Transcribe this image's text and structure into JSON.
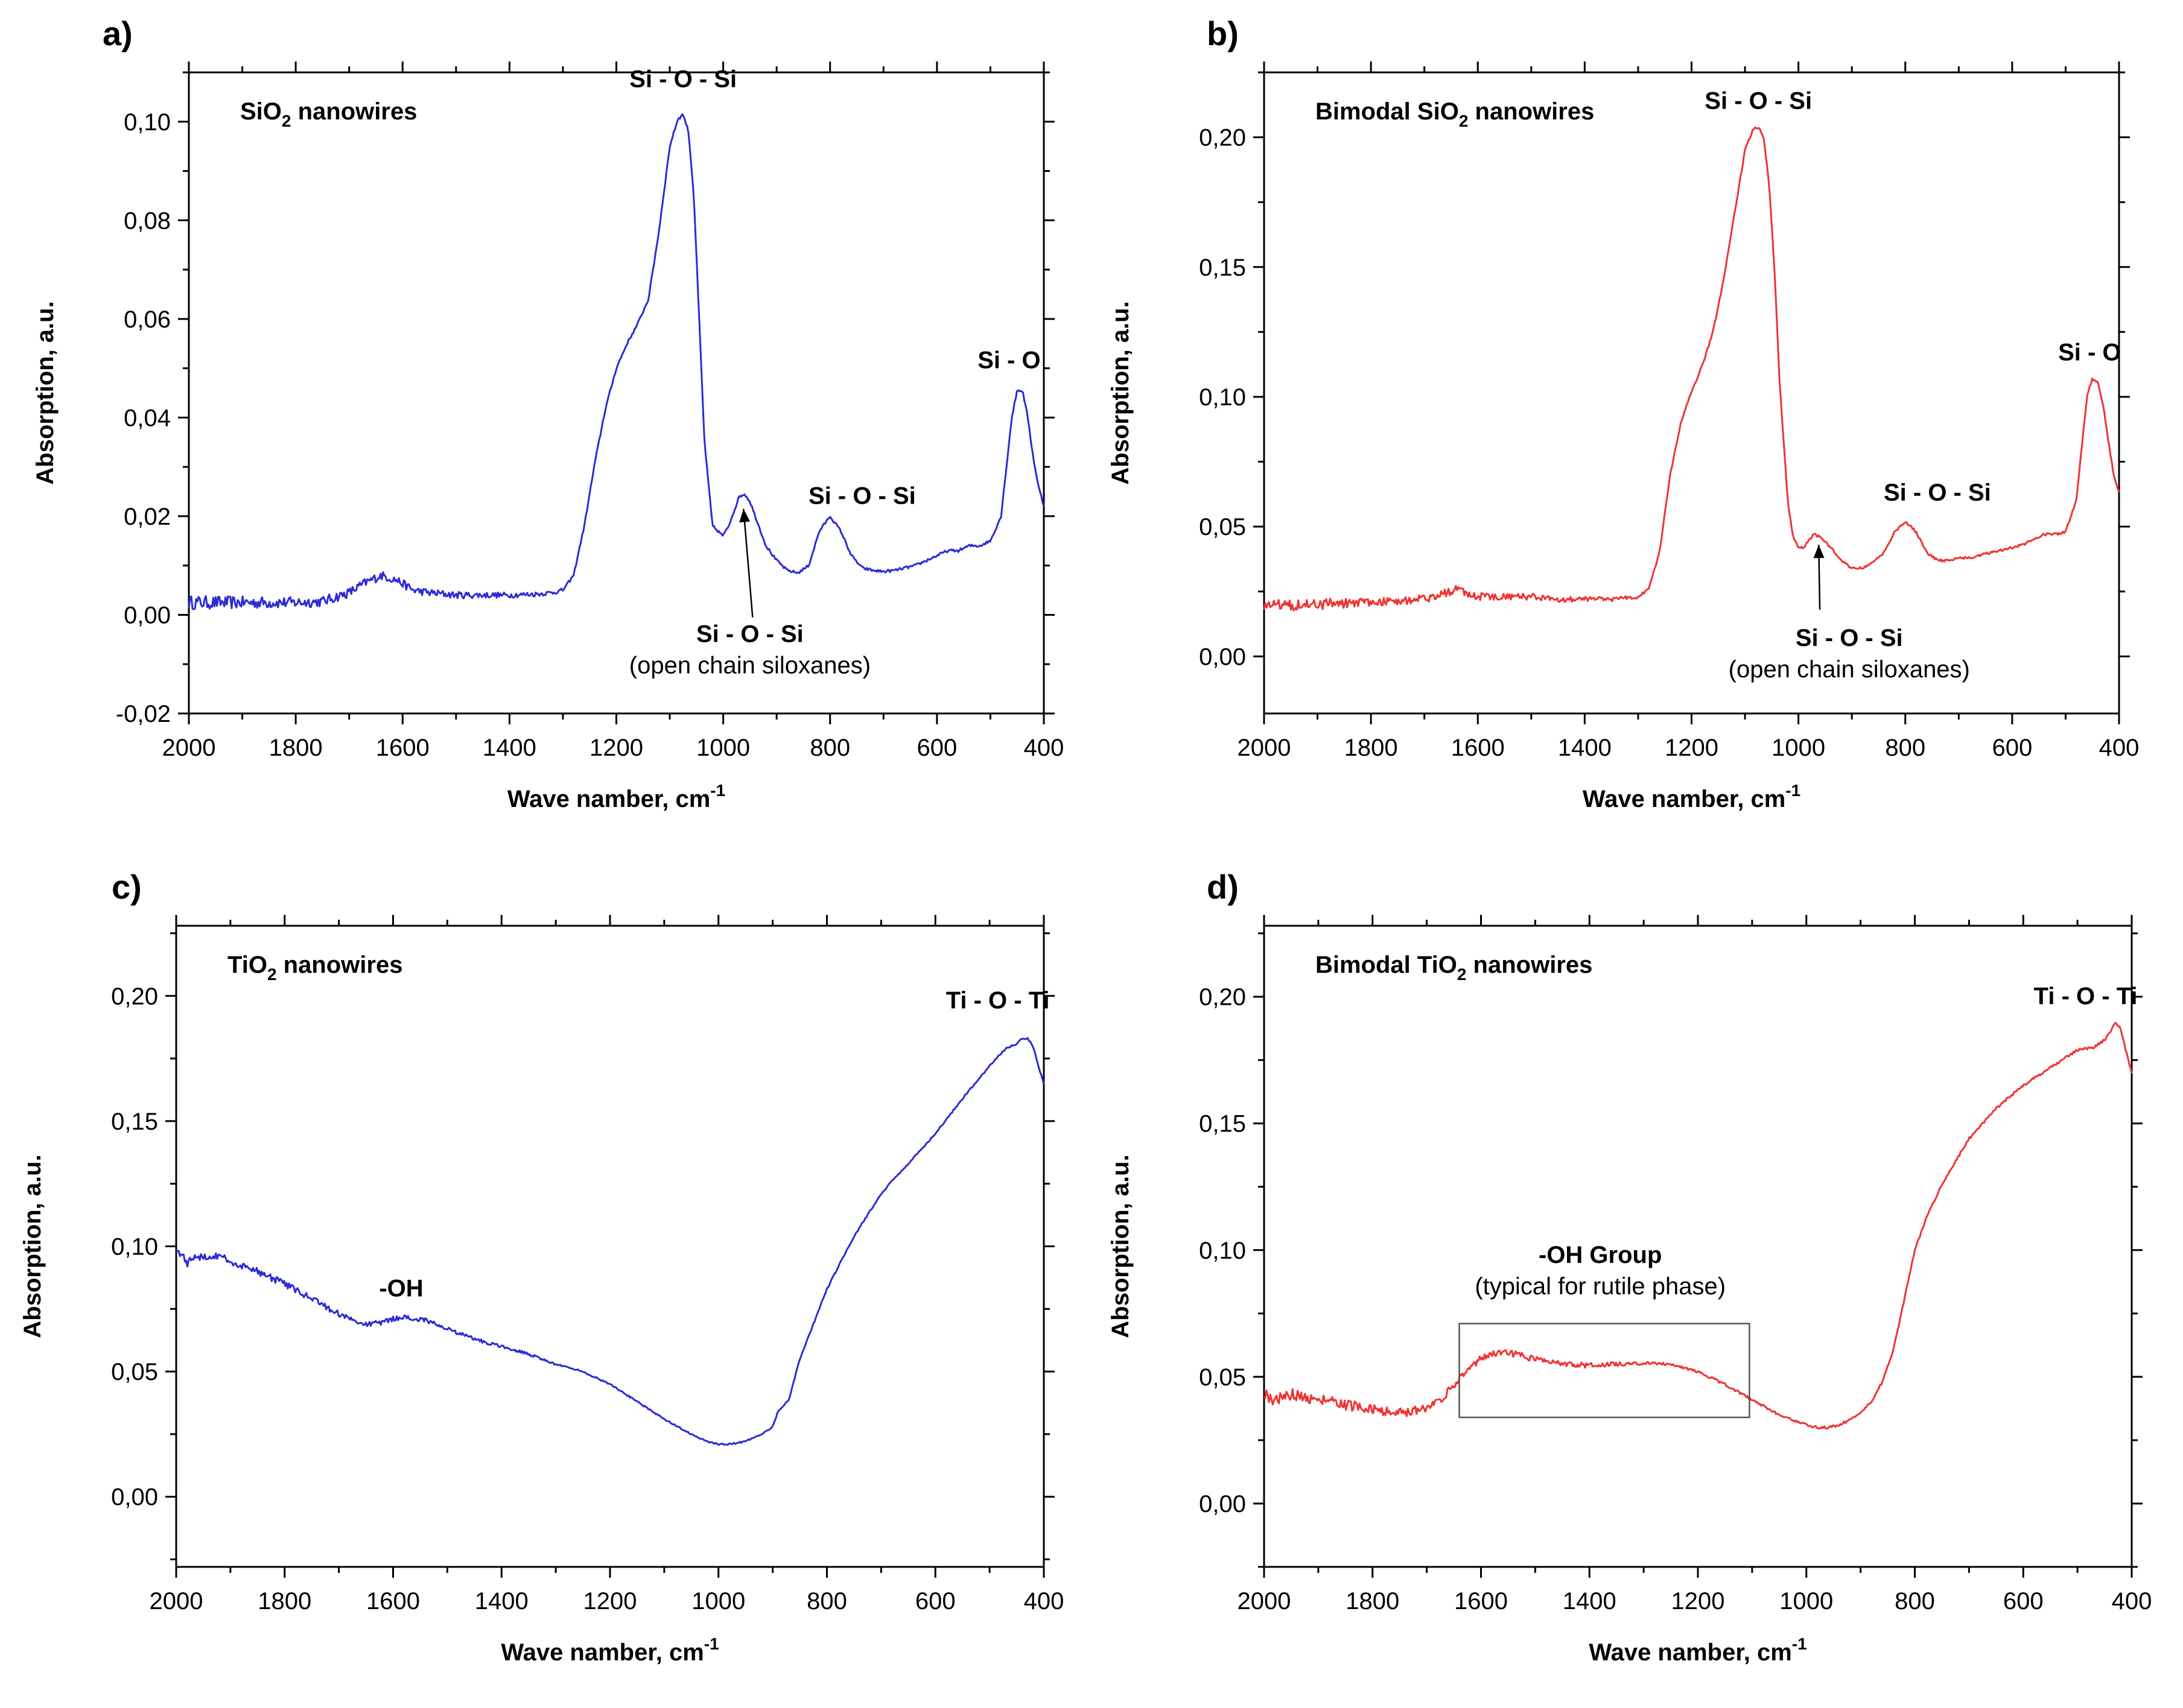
{
  "chart_data": [
    {
      "type": "line",
      "panel_label": "a)",
      "title": "SiO2 nanowires",
      "title_main": "SiO",
      "title_sub": "2",
      "title_rest": " nanowires",
      "xlabel": "Wave namber, cm",
      "xlabel_sup": "-1",
      "ylabel": "Absorption, a.u.",
      "xlim": [
        2000,
        400
      ],
      "ylim": [
        -0.02,
        0.11
      ],
      "xticks": [
        2000,
        1800,
        1600,
        1400,
        1200,
        1000,
        800,
        600,
        400
      ],
      "yticks": [
        -0.02,
        0.0,
        0.02,
        0.04,
        0.06,
        0.08,
        0.1
      ],
      "ytick_labels": [
        "-0,02",
        "0,00",
        "0,02",
        "0,04",
        "0,06",
        "0,08",
        "0,10"
      ],
      "color": "#2b2bd6",
      "noise": 0.0007,
      "series": [
        {
          "name": "SiO2 nanowires",
          "x": [
            2000,
            1950,
            1900,
            1850,
            1800,
            1750,
            1700,
            1670,
            1640,
            1610,
            1580,
            1550,
            1500,
            1450,
            1400,
            1350,
            1320,
            1300,
            1280,
            1260,
            1240,
            1220,
            1200,
            1180,
            1160,
            1140,
            1120,
            1100,
            1085,
            1075,
            1065,
            1055,
            1045,
            1035,
            1020,
            1000,
            990,
            980,
            970,
            960,
            950,
            940,
            920,
            900,
            880,
            860,
            840,
            820,
            800,
            780,
            760,
            740,
            720,
            700,
            680,
            660,
            640,
            620,
            600,
            580,
            560,
            540,
            520,
            500,
            480,
            470,
            460,
            450,
            440,
            430,
            420,
            410,
            400
          ],
          "values": [
            0.0025,
            0.0025,
            0.0025,
            0.0025,
            0.0025,
            0.0027,
            0.0045,
            0.0065,
            0.008,
            0.007,
            0.005,
            0.0045,
            0.004,
            0.004,
            0.004,
            0.0042,
            0.0045,
            0.005,
            0.008,
            0.018,
            0.031,
            0.042,
            0.05,
            0.055,
            0.059,
            0.064,
            0.078,
            0.095,
            0.1005,
            0.1015,
            0.098,
            0.085,
            0.06,
            0.035,
            0.018,
            0.016,
            0.018,
            0.021,
            0.024,
            0.0245,
            0.023,
            0.02,
            0.014,
            0.011,
            0.009,
            0.0085,
            0.01,
            0.017,
            0.02,
            0.017,
            0.012,
            0.0095,
            0.009,
            0.0088,
            0.009,
            0.0095,
            0.01,
            0.011,
            0.012,
            0.013,
            0.013,
            0.014,
            0.014,
            0.015,
            0.02,
            0.03,
            0.04,
            0.0455,
            0.0455,
            0.04,
            0.032,
            0.026,
            0.022
          ]
        }
      ],
      "annotations": [
        {
          "text": "Si - O - Si",
          "sub": "",
          "x": 1075,
          "y": 0.107
        },
        {
          "text": "Si - O - Si",
          "sub": "",
          "x": 740,
          "y": 0.0225
        },
        {
          "text": "Si - O",
          "sub": "",
          "x": 465,
          "y": 0.05
        },
        {
          "text": "Si - O - Si",
          "sub": "(open chain siloxanes)",
          "x": 950,
          "y": -0.0055
        }
      ],
      "arrow": {
        "from": [
          945,
          -0.0005
        ],
        "to": [
          962,
          0.0215
        ]
      },
      "box": null
    },
    {
      "type": "line",
      "panel_label": "b)",
      "title": "Bimodal SiO2 nanowires",
      "title_main": "Bimodal SiO",
      "title_sub": "2",
      "title_rest": " nanowires",
      "xlabel": "Wave namber, cm",
      "xlabel_sup": "-1",
      "ylabel": "Absorption, a.u.",
      "xlim": [
        2000,
        400
      ],
      "ylim": [
        -0.022,
        0.225
      ],
      "xticks": [
        2000,
        1800,
        1600,
        1400,
        1200,
        1000,
        800,
        600,
        400
      ],
      "yticks": [
        0.0,
        0.05,
        0.1,
        0.15,
        0.2
      ],
      "ytick_labels": [
        "0,00",
        "0,05",
        "0,10",
        "0,15",
        "0,20"
      ],
      "color": "#ee3333",
      "noise": 0.0012,
      "series": [
        {
          "name": "Bimodal SiO2 nanowires",
          "x": [
            2000,
            1900,
            1800,
            1700,
            1650,
            1640,
            1600,
            1550,
            1500,
            1450,
            1400,
            1350,
            1300,
            1280,
            1260,
            1240,
            1220,
            1200,
            1180,
            1160,
            1140,
            1120,
            1100,
            1085,
            1075,
            1065,
            1055,
            1045,
            1035,
            1020,
            1010,
            1000,
            990,
            980,
            970,
            960,
            940,
            920,
            900,
            880,
            860,
            840,
            820,
            800,
            780,
            760,
            740,
            720,
            700,
            680,
            660,
            640,
            620,
            600,
            580,
            560,
            540,
            520,
            500,
            480,
            470,
            460,
            450,
            440,
            430,
            420,
            410,
            400
          ],
          "values": [
            0.02,
            0.02,
            0.021,
            0.022,
            0.025,
            0.026,
            0.023,
            0.023,
            0.023,
            0.022,
            0.022,
            0.022,
            0.023,
            0.026,
            0.04,
            0.07,
            0.09,
            0.102,
            0.112,
            0.125,
            0.145,
            0.17,
            0.195,
            0.203,
            0.204,
            0.2,
            0.182,
            0.15,
            0.105,
            0.06,
            0.046,
            0.042,
            0.042,
            0.045,
            0.047,
            0.046,
            0.042,
            0.037,
            0.034,
            0.034,
            0.036,
            0.04,
            0.048,
            0.052,
            0.048,
            0.04,
            0.037,
            0.037,
            0.038,
            0.038,
            0.039,
            0.04,
            0.041,
            0.042,
            0.043,
            0.045,
            0.047,
            0.047,
            0.048,
            0.06,
            0.08,
            0.1,
            0.107,
            0.106,
            0.097,
            0.083,
            0.07,
            0.063
          ]
        }
      ],
      "annotations": [
        {
          "text": "Si - O - Si",
          "sub": "",
          "x": 1075,
          "y": 0.211
        },
        {
          "text": "Si - O - Si",
          "sub": "",
          "x": 740,
          "y": 0.06
        },
        {
          "text": "Si - O",
          "sub": "",
          "x": 455,
          "y": 0.114
        },
        {
          "text": "Si - O - Si",
          "sub": "(open chain siloxanes)",
          "x": 905,
          "y": 0.004
        }
      ],
      "arrow": {
        "from": [
          960,
          0.018
        ],
        "to": [
          962,
          0.043
        ]
      },
      "box": null
    },
    {
      "type": "line",
      "panel_label": "c)",
      "title": "TiO2 nanowires",
      "title_main": "TiO",
      "title_sub": "2",
      "title_rest": " nanowires",
      "xlabel": "Wave namber, cm",
      "xlabel_sup": "-1",
      "ylabel": "Absorption, a.u.",
      "xlim": [
        2000,
        400
      ],
      "ylim": [
        -0.028,
        0.228
      ],
      "xticks": [
        2000,
        1800,
        1600,
        1400,
        1200,
        1000,
        800,
        600,
        400
      ],
      "yticks": [
        0.0,
        0.05,
        0.1,
        0.15,
        0.2
      ],
      "ytick_labels": [
        "0,00",
        "0,05",
        "0,10",
        "0,15",
        "0,20"
      ],
      "color": "#2b2bd6",
      "noise": 0.0008,
      "series": [
        {
          "name": "TiO2 nanowires",
          "x": [
            2000,
            1990,
            1980,
            1970,
            1950,
            1920,
            1900,
            1850,
            1800,
            1750,
            1700,
            1670,
            1650,
            1620,
            1600,
            1580,
            1560,
            1540,
            1500,
            1450,
            1400,
            1350,
            1300,
            1250,
            1200,
            1150,
            1100,
            1050,
            1020,
            1000,
            980,
            950,
            920,
            900,
            890,
            880,
            870,
            850,
            800,
            750,
            700,
            680,
            650,
            600,
            550,
            500,
            470,
            450,
            440,
            430,
            420,
            410,
            400
          ],
          "values": [
            0.099,
            0.097,
            0.093,
            0.095,
            0.096,
            0.096,
            0.094,
            0.09,
            0.085,
            0.079,
            0.073,
            0.07,
            0.069,
            0.0695,
            0.071,
            0.0715,
            0.071,
            0.0705,
            0.067,
            0.063,
            0.06,
            0.057,
            0.053,
            0.05,
            0.045,
            0.038,
            0.031,
            0.025,
            0.022,
            0.021,
            0.021,
            0.022,
            0.025,
            0.028,
            0.034,
            0.036,
            0.039,
            0.055,
            0.083,
            0.104,
            0.121,
            0.126,
            0.133,
            0.145,
            0.159,
            0.172,
            0.179,
            0.181,
            0.183,
            0.183,
            0.18,
            0.172,
            0.165
          ]
        }
      ],
      "annotations": [
        {
          "text": "Ti - O - Ti",
          "sub": "",
          "x": 485,
          "y": 0.195
        },
        {
          "text": "-OH",
          "sub": "",
          "x": 1585,
          "y": 0.08
        }
      ],
      "arrow": null,
      "box": null
    },
    {
      "type": "line",
      "panel_label": "d)",
      "title": "Bimodal TiO2 nanowires",
      "title_main": "Bimodal TiO",
      "title_sub": "2",
      "title_rest": " nanowires",
      "xlabel": "Wave namber, cm",
      "xlabel_sup": "-1",
      "ylabel": "Absorption, a.u.",
      "xlim": [
        2000,
        400
      ],
      "ylim": [
        -0.025,
        0.228
      ],
      "xticks": [
        2000,
        1800,
        1600,
        1400,
        1200,
        1000,
        800,
        600,
        400
      ],
      "yticks": [
        0.0,
        0.05,
        0.1,
        0.15,
        0.2
      ],
      "ytick_labels": [
        "0,00",
        "0,05",
        "0,10",
        "0,15",
        "0,20"
      ],
      "color": "#ee3333",
      "noise": 0.0012,
      "series": [
        {
          "name": "Bimodal TiO2 nanowires",
          "x": [
            2000,
            1990,
            1980,
            1970,
            1950,
            1920,
            1900,
            1850,
            1800,
            1760,
            1740,
            1700,
            1670,
            1650,
            1620,
            1600,
            1580,
            1560,
            1540,
            1500,
            1450,
            1400,
            1350,
            1300,
            1250,
            1200,
            1150,
            1100,
            1050,
            1000,
            980,
            960,
            940,
            920,
            900,
            880,
            860,
            840,
            820,
            800,
            780,
            750,
            700,
            650,
            600,
            550,
            500,
            470,
            450,
            440,
            430,
            420,
            410,
            400
          ],
          "values": [
            0.044,
            0.042,
            0.04,
            0.042,
            0.043,
            0.042,
            0.041,
            0.039,
            0.037,
            0.036,
            0.036,
            0.038,
            0.042,
            0.047,
            0.054,
            0.057,
            0.059,
            0.0595,
            0.059,
            0.057,
            0.055,
            0.0545,
            0.055,
            0.0555,
            0.055,
            0.052,
            0.047,
            0.041,
            0.035,
            0.031,
            0.03,
            0.03,
            0.031,
            0.033,
            0.036,
            0.04,
            0.048,
            0.06,
            0.08,
            0.1,
            0.112,
            0.126,
            0.144,
            0.156,
            0.165,
            0.172,
            0.179,
            0.18,
            0.183,
            0.186,
            0.19,
            0.187,
            0.178,
            0.17
          ]
        }
      ],
      "annotations": [
        {
          "text": "Ti - O - Ti",
          "sub": "",
          "x": 485,
          "y": 0.197
        },
        {
          "text": "-OH Group",
          "sub": "(typical for rutile phase)",
          "x": 1380,
          "y": 0.095
        }
      ],
      "arrow": null,
      "box": {
        "x": [
          1640,
          1105
        ],
        "y": [
          0.034,
          0.071
        ]
      }
    }
  ]
}
